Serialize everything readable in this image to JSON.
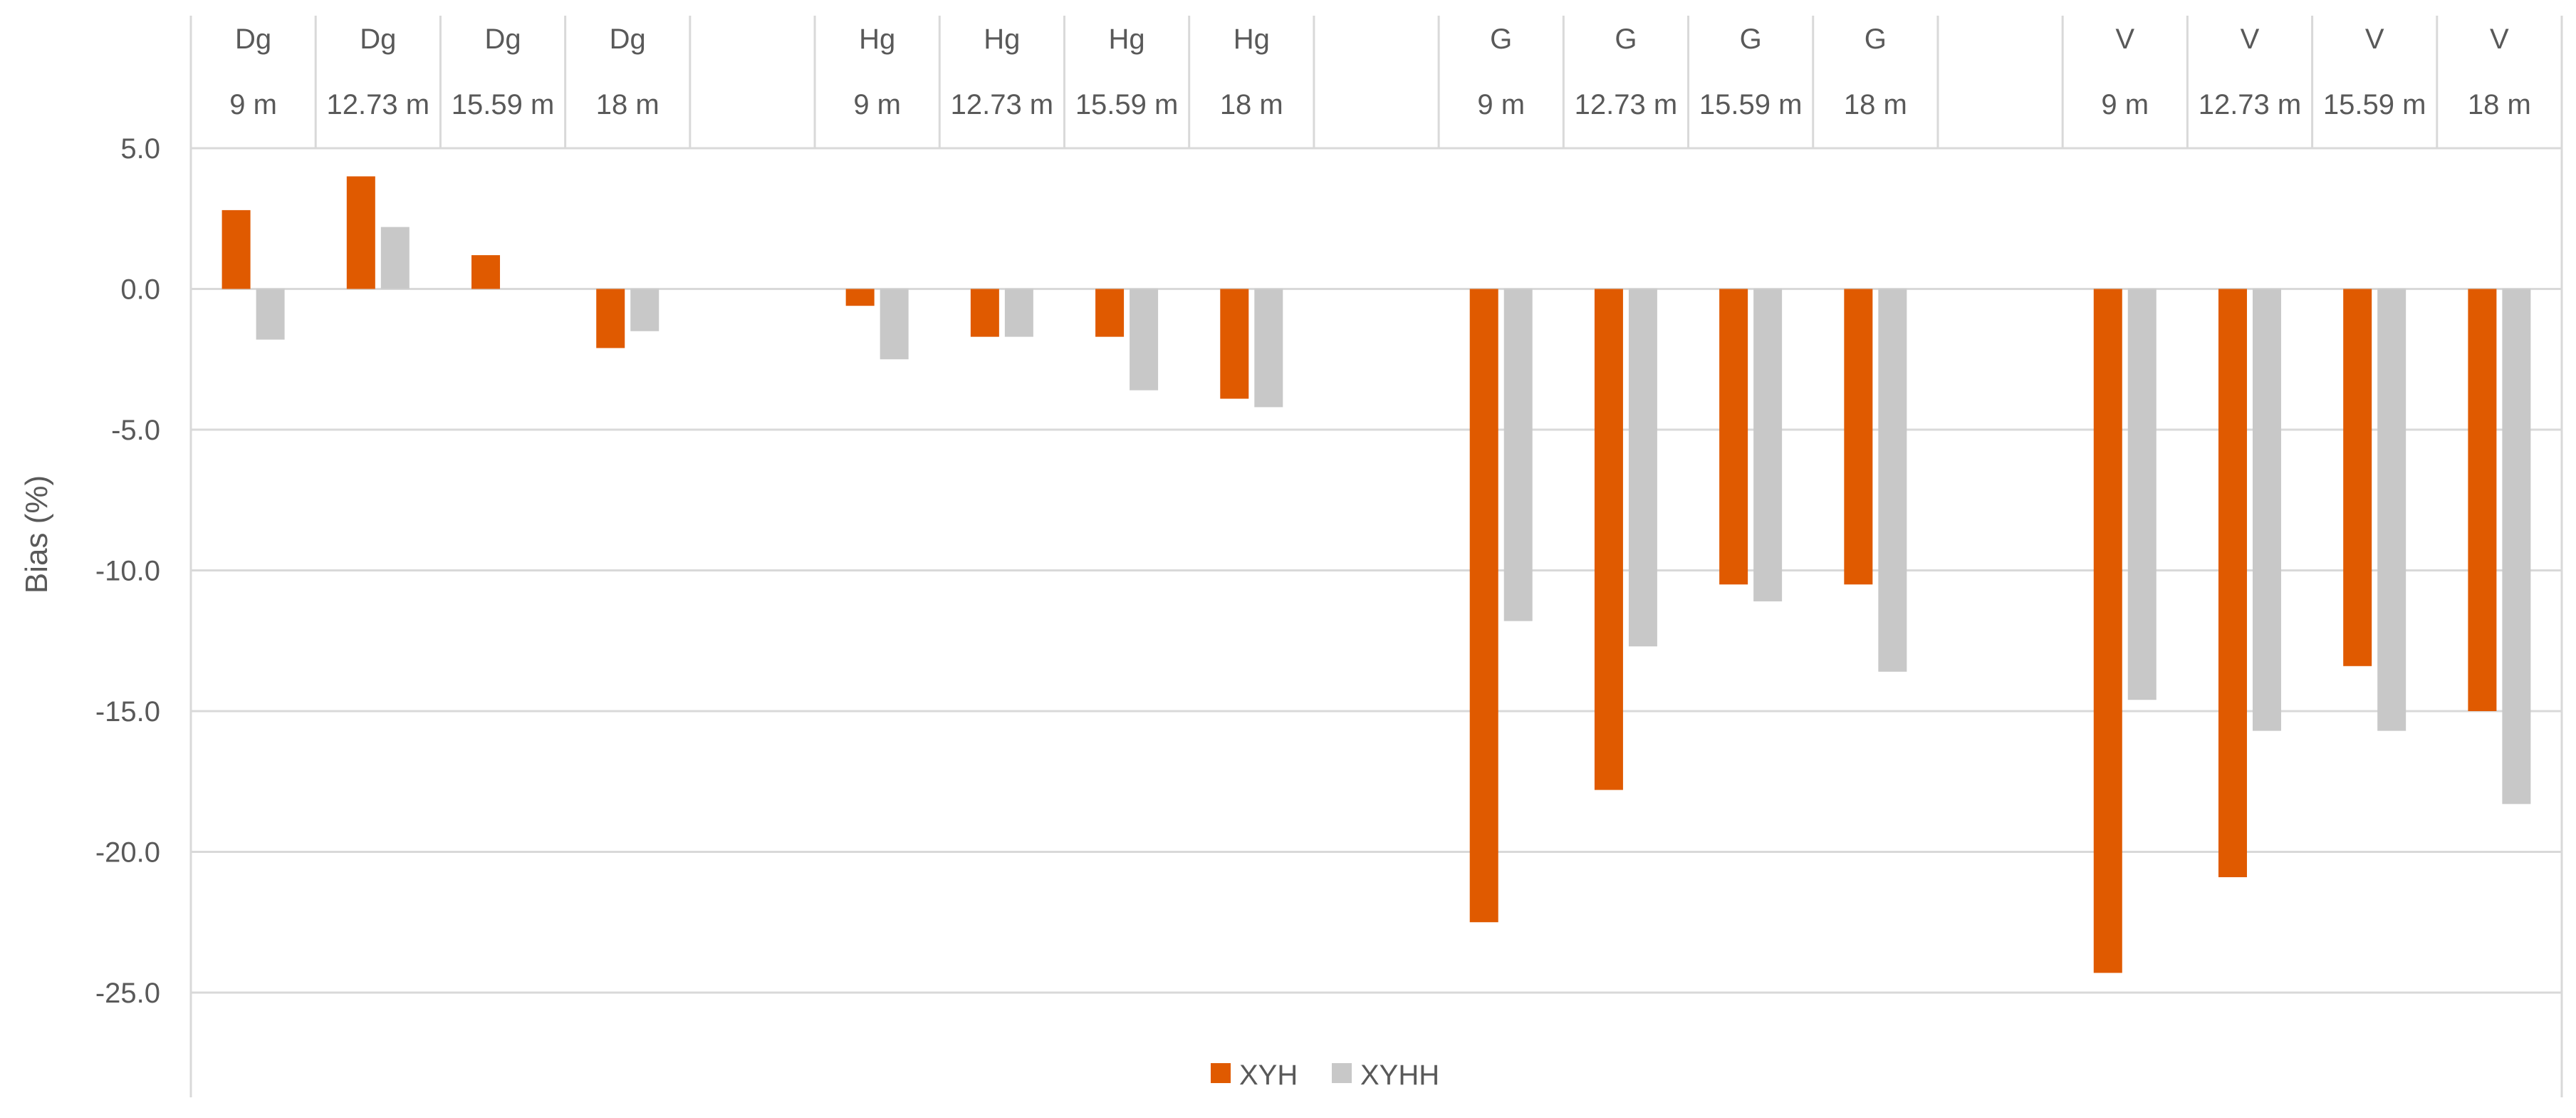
{
  "chart_data": {
    "type": "bar",
    "ylabel": "Bias (%)",
    "ylim": [
      -25,
      5
    ],
    "yticks": [
      5,
      0,
      -5,
      -10,
      -15,
      -20,
      -25
    ],
    "ytick_labels": [
      "5.0",
      "0.0",
      "-5.0",
      "-10.0",
      "-15.0",
      "-20.0",
      "-25.0"
    ],
    "grid": true,
    "legend_position": "bottom",
    "slots": [
      {
        "top": "Dg",
        "bottom": "9 m"
      },
      {
        "top": "Dg",
        "bottom": "12.73 m"
      },
      {
        "top": "Dg",
        "bottom": "15.59 m"
      },
      {
        "top": "Dg",
        "bottom": "18 m"
      },
      {
        "top": "",
        "bottom": ""
      },
      {
        "top": "Hg",
        "bottom": "9 m"
      },
      {
        "top": "Hg",
        "bottom": "12.73 m"
      },
      {
        "top": "Hg",
        "bottom": "15.59 m"
      },
      {
        "top": "Hg",
        "bottom": "18 m"
      },
      {
        "top": "",
        "bottom": ""
      },
      {
        "top": "G",
        "bottom": "9 m"
      },
      {
        "top": "G",
        "bottom": "12.73 m"
      },
      {
        "top": "G",
        "bottom": "15.59 m"
      },
      {
        "top": "G",
        "bottom": "18 m"
      },
      {
        "top": "",
        "bottom": ""
      },
      {
        "top": "V",
        "bottom": "9 m"
      },
      {
        "top": "V",
        "bottom": "12.73 m"
      },
      {
        "top": "V",
        "bottom": "15.59 m"
      },
      {
        "top": "V",
        "bottom": "18 m"
      }
    ],
    "series": [
      {
        "name": "XYH",
        "color": "#E05A00",
        "values": [
          2.8,
          4.0,
          1.2,
          -2.1,
          null,
          -0.6,
          -1.7,
          -1.7,
          -3.9,
          null,
          -22.5,
          -17.8,
          -10.5,
          -10.5,
          null,
          -24.3,
          -20.9,
          -13.4,
          -15.0
        ]
      },
      {
        "name": "XYHH",
        "color": "#C8C8C8",
        "values": [
          -1.8,
          2.2,
          0.0,
          -1.5,
          null,
          -2.5,
          -1.7,
          -3.6,
          -4.2,
          null,
          -11.8,
          -12.7,
          -11.1,
          -13.6,
          null,
          -14.6,
          -15.7,
          -15.7,
          -18.3
        ]
      }
    ]
  }
}
